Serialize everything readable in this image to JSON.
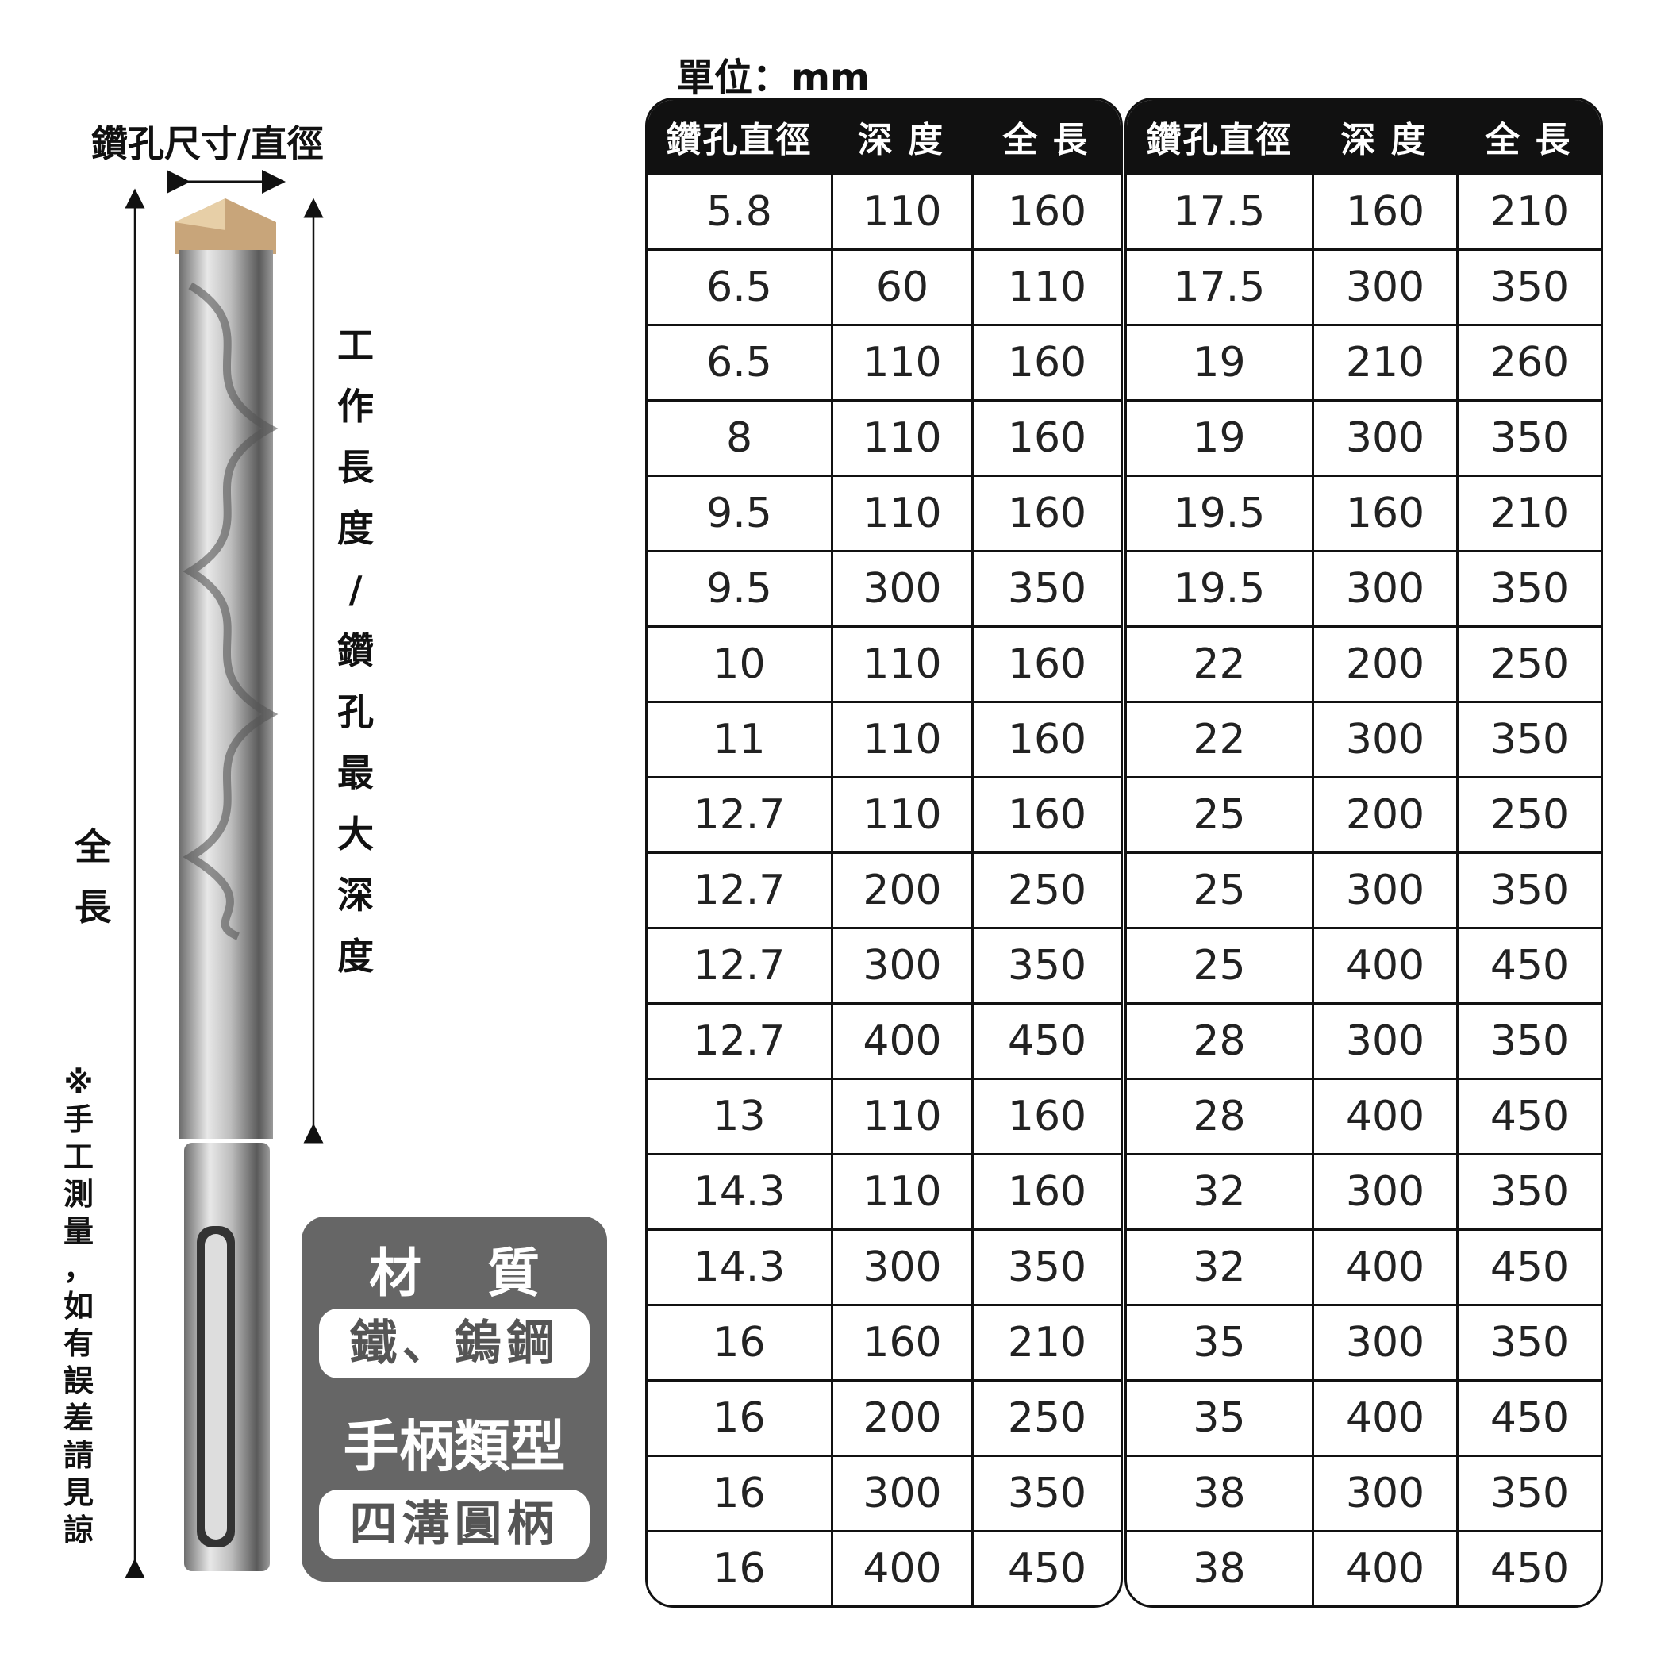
{
  "unit_label": "單位：mm",
  "diagram": {
    "diameter_label": "鑽孔尺寸/直徑",
    "working_length_label": [
      "工",
      "作",
      "長",
      "度",
      "/",
      "鑽",
      "孔",
      "最",
      "大",
      "深",
      "度"
    ],
    "total_length_label": [
      "全",
      "長"
    ],
    "note": [
      "※",
      "手",
      "工",
      "測",
      "量",
      "，",
      "如",
      "有",
      "誤",
      "差",
      "請",
      "見",
      "諒"
    ]
  },
  "material": {
    "title": "材 質",
    "value": "鐵、鎢鋼",
    "shank_title": "手柄類型",
    "shank_value": "四溝圓柄"
  },
  "table": {
    "headers": [
      "鑽孔直徑",
      "深 度",
      "全 長"
    ],
    "left_rows": [
      [
        "5.8",
        "110",
        "160"
      ],
      [
        "6.5",
        "60",
        "110"
      ],
      [
        "6.5",
        "110",
        "160"
      ],
      [
        "8",
        "110",
        "160"
      ],
      [
        "9.5",
        "110",
        "160"
      ],
      [
        "9.5",
        "300",
        "350"
      ],
      [
        "10",
        "110",
        "160"
      ],
      [
        "11",
        "110",
        "160"
      ],
      [
        "12.7",
        "110",
        "160"
      ],
      [
        "12.7",
        "200",
        "250"
      ],
      [
        "12.7",
        "300",
        "350"
      ],
      [
        "12.7",
        "400",
        "450"
      ],
      [
        "13",
        "110",
        "160"
      ],
      [
        "14.3",
        "110",
        "160"
      ],
      [
        "14.3",
        "300",
        "350"
      ],
      [
        "16",
        "160",
        "210"
      ],
      [
        "16",
        "200",
        "250"
      ],
      [
        "16",
        "300",
        "350"
      ],
      [
        "16",
        "400",
        "450"
      ]
    ],
    "right_rows": [
      [
        "17.5",
        "160",
        "210"
      ],
      [
        "17.5",
        "300",
        "350"
      ],
      [
        "19",
        "210",
        "260"
      ],
      [
        "19",
        "300",
        "350"
      ],
      [
        "19.5",
        "160",
        "210"
      ],
      [
        "19.5",
        "300",
        "350"
      ],
      [
        "22",
        "200",
        "250"
      ],
      [
        "22",
        "300",
        "350"
      ],
      [
        "25",
        "200",
        "250"
      ],
      [
        "25",
        "300",
        "350"
      ],
      [
        "25",
        "400",
        "450"
      ],
      [
        "28",
        "300",
        "350"
      ],
      [
        "28",
        "400",
        "450"
      ],
      [
        "32",
        "300",
        "350"
      ],
      [
        "32",
        "400",
        "450"
      ],
      [
        "35",
        "300",
        "350"
      ],
      [
        "35",
        "400",
        "450"
      ],
      [
        "38",
        "300",
        "350"
      ],
      [
        "38",
        "400",
        "450"
      ]
    ]
  }
}
